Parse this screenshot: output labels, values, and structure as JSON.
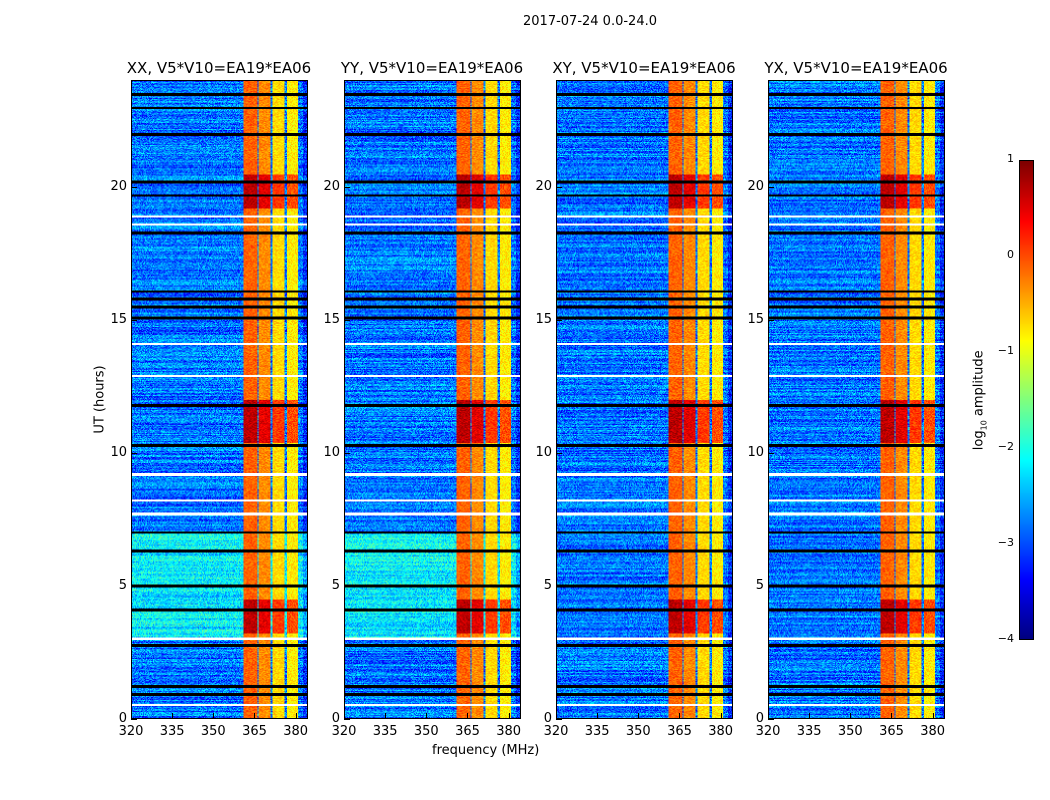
{
  "chart_data": {
    "type": "heatmap",
    "title": "2017-07-24 0.0-24.0",
    "xlabel": "frequency (MHz)",
    "ylabel": "UT (hours)",
    "xlim": [
      320,
      384.5
    ],
    "ylim": [
      0,
      24
    ],
    "xticks": [
      320,
      335,
      350,
      365,
      380
    ],
    "yticks": [
      0,
      5,
      10,
      15,
      20
    ],
    "panels": [
      {
        "title": "XX, V5*V10=EA19*EA06"
      },
      {
        "title": "YY, V5*V10=EA19*EA06"
      },
      {
        "title": "XY, V5*V10=EA19*EA06"
      },
      {
        "title": "YX, V5*V10=EA19*EA06"
      }
    ],
    "colorbar": {
      "label_prefix": "log",
      "label_sub": "10",
      "label_suffix": " amplitude",
      "colormap": "jet",
      "range": [
        -4,
        1
      ],
      "ticks": [
        -4,
        -3,
        -2,
        -1,
        0,
        1
      ],
      "tick_labels": [
        "−4",
        "−3",
        "−2",
        "−1",
        "0",
        "1"
      ]
    },
    "background_log_amplitude": -2.8,
    "bright_bands_mhz": [
      [
        361,
        366,
        0.3
      ],
      [
        366.5,
        371,
        0.1
      ],
      [
        371.5,
        376,
        -0.3
      ],
      [
        377,
        381,
        -0.4
      ]
    ],
    "hot_time_ranges_hours": [
      [
        10.4,
        12.0
      ],
      [
        19.2,
        20.5
      ],
      [
        3.2,
        4.5
      ]
    ],
    "flagged_rows_hours": [
      0.9,
      1.2,
      2.75,
      4.1,
      5.0,
      6.3,
      7.0,
      10.3,
      11.8,
      15.1,
      15.5,
      15.8,
      16.1,
      18.3,
      19.7,
      20.2,
      22.0,
      23.0,
      23.5
    ],
    "no_data_rows_hours": [
      0.5,
      3.0,
      7.7,
      8.2,
      9.2,
      14.1,
      18.6,
      18.9,
      12.9
    ]
  }
}
